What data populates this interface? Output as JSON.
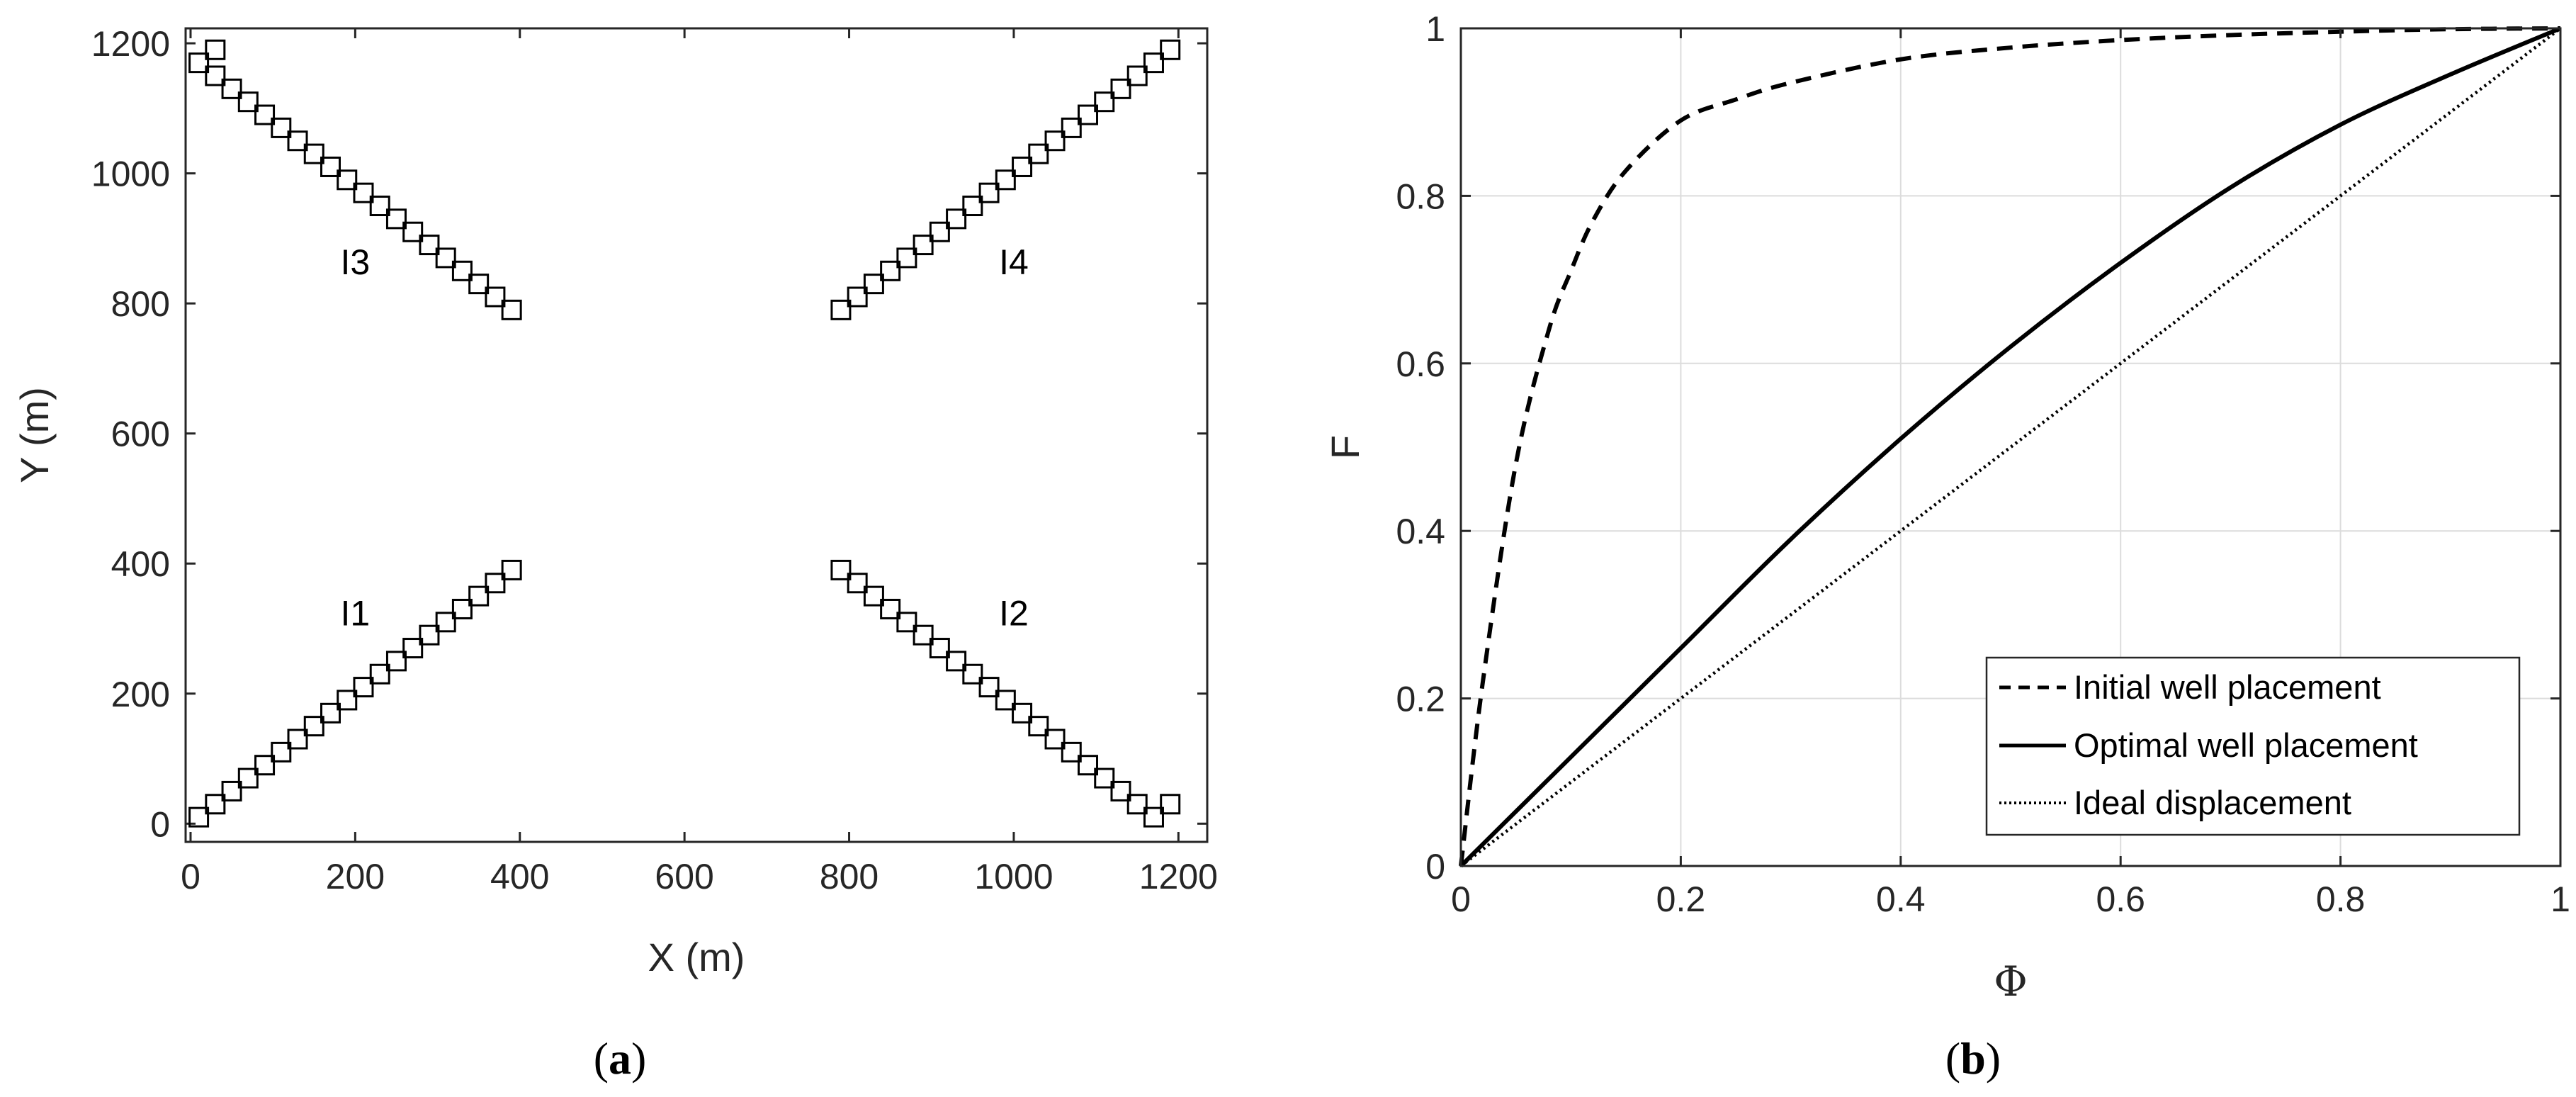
{
  "chart_data": [
    {
      "type": "scatter",
      "caption": {
        "open": "(",
        "letter": "a",
        "close": ")"
      },
      "xlabel": "X (m)",
      "ylabel": "Y (m)",
      "xlim": [
        0,
        1200
      ],
      "ylim": [
        0,
        1200
      ],
      "xticks": [
        "0",
        "200",
        "400",
        "600",
        "800",
        "1000",
        "1200"
      ],
      "yticks": [
        "0",
        "200",
        "400",
        "600",
        "800",
        "1000",
        "1200"
      ],
      "grid": false,
      "marker": "square",
      "annotations": [
        {
          "text": "I1",
          "x": 200,
          "y": 305
        },
        {
          "text": "I2",
          "x": 1000,
          "y": 305
        },
        {
          "text": "I3",
          "x": 200,
          "y": 845
        },
        {
          "text": "I4",
          "x": 1000,
          "y": 845
        }
      ],
      "series": [
        {
          "label": "I1",
          "x": [
            10,
            30,
            50,
            70,
            90,
            110,
            130,
            150,
            170,
            190,
            210,
            230,
            250,
            270,
            290,
            310,
            330,
            350,
            370,
            390
          ],
          "y": [
            10,
            30,
            50,
            70,
            90,
            110,
            130,
            150,
            170,
            190,
            210,
            230,
            250,
            270,
            290,
            310,
            330,
            350,
            370,
            390
          ]
        },
        {
          "label": "I2",
          "x": [
            790,
            810,
            830,
            850,
            870,
            890,
            910,
            930,
            950,
            970,
            990,
            1010,
            1030,
            1050,
            1070,
            1090,
            1110,
            1130,
            1150,
            1170,
            1190
          ],
          "y": [
            390,
            370,
            350,
            330,
            310,
            290,
            270,
            250,
            230,
            210,
            190,
            170,
            150,
            130,
            110,
            90,
            70,
            50,
            30,
            10,
            30
          ]
        },
        {
          "label": "I3",
          "x": [
            10,
            30,
            30,
            50,
            70,
            90,
            110,
            130,
            150,
            170,
            190,
            210,
            230,
            250,
            270,
            290,
            310,
            330,
            350,
            370,
            390
          ],
          "y": [
            1170,
            1190,
            1150,
            1130,
            1110,
            1090,
            1070,
            1050,
            1030,
            1010,
            990,
            970,
            950,
            930,
            910,
            890,
            870,
            850,
            830,
            810,
            790
          ]
        },
        {
          "label": "I4",
          "x": [
            790,
            810,
            830,
            850,
            870,
            890,
            910,
            930,
            950,
            970,
            990,
            1010,
            1030,
            1050,
            1070,
            1090,
            1110,
            1130,
            1150,
            1170,
            1190
          ],
          "y": [
            790,
            810,
            830,
            850,
            870,
            890,
            910,
            930,
            950,
            970,
            990,
            1010,
            1030,
            1050,
            1070,
            1090,
            1110,
            1130,
            1150,
            1170,
            1190
          ]
        }
      ]
    },
    {
      "type": "line",
      "caption": {
        "open": "(",
        "letter": "b",
        "close": ")"
      },
      "xlabel": "Φ",
      "ylabel": "F",
      "xlim": [
        0,
        1
      ],
      "ylim": [
        0,
        1
      ],
      "xticks": [
        "0",
        "0.2",
        "0.4",
        "0.6",
        "0.8",
        "1"
      ],
      "yticks": [
        "0",
        "0.2",
        "0.4",
        "0.6",
        "0.8",
        "1"
      ],
      "grid": true,
      "legend_position": "bottom-right",
      "series": [
        {
          "name": "Initial well placement",
          "style": "dashed",
          "x": [
            0,
            0.02,
            0.05,
            0.08,
            0.1,
            0.12,
            0.15,
            0.2,
            0.25,
            0.3,
            0.4,
            0.5,
            0.6,
            0.7,
            0.8,
            0.9,
            1.0
          ],
          "y": [
            0,
            0.22,
            0.48,
            0.64,
            0.71,
            0.77,
            0.83,
            0.89,
            0.915,
            0.935,
            0.963,
            0.977,
            0.986,
            0.992,
            0.996,
            0.999,
            1.0
          ]
        },
        {
          "name": "Optimal well placement",
          "style": "solid",
          "x": [
            0,
            0.1,
            0.2,
            0.3,
            0.4,
            0.5,
            0.6,
            0.7,
            0.8,
            0.9,
            1.0
          ],
          "y": [
            0,
            0.13,
            0.26,
            0.39,
            0.51,
            0.62,
            0.72,
            0.81,
            0.885,
            0.945,
            1.0
          ]
        },
        {
          "name": "Ideal displacement",
          "style": "dotted",
          "x": [
            0,
            1
          ],
          "y": [
            0,
            1
          ]
        }
      ]
    }
  ]
}
